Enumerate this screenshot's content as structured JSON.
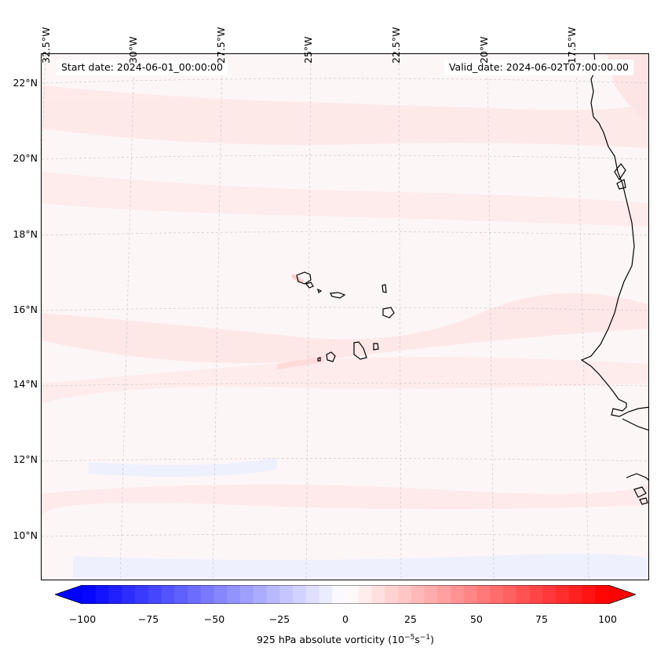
{
  "header": {
    "start_date": "Start date: 2024-06-01_00:00:00",
    "valid_date": "Valid_date: 2024-06-02T07:00:00.00"
  },
  "map": {
    "longitude_labels": [
      "32.5°W",
      "30°W",
      "27.5°W",
      "25°W",
      "22.5°W",
      "20°W",
      "17.5°W"
    ],
    "latitude_labels": [
      "22°N",
      "20°N",
      "18°N",
      "16°N",
      "14°N",
      "12°N",
      "10°N"
    ],
    "gridlines": "dashed",
    "field_color_background": "#fdf6f6",
    "field_color_positive": "#ffe6e6",
    "field_color_negative": "#eef0ff",
    "coast_color": "#000000"
  },
  "colorbar": {
    "min": -100,
    "max": 100,
    "tick_labels": [
      "−100",
      "−75",
      "−50",
      "−25",
      "0",
      "25",
      "50",
      "75",
      "100"
    ],
    "label_main": "925 hPa absolute vorticity (10",
    "label_exp1": "−5",
    "label_mid": "s",
    "label_exp2": "−1",
    "label_end": ")",
    "extend": "both",
    "colormap": "bwr",
    "color_low": "#0000ff",
    "color_mid": "#ffffff",
    "color_high": "#ff0000"
  }
}
